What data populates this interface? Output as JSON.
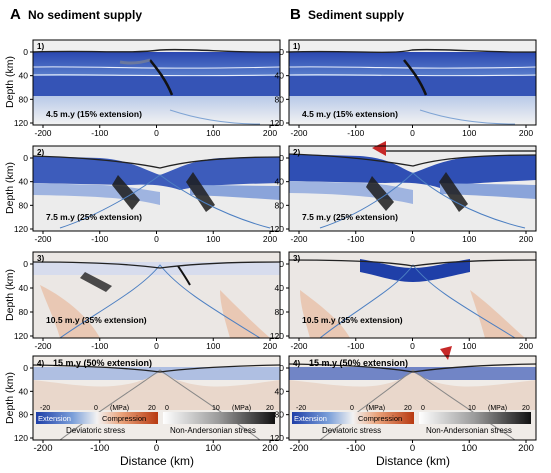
{
  "columns": [
    {
      "letter": "A",
      "title": "No sediment supply"
    },
    {
      "letter": "B",
      "title": "Sediment supply"
    }
  ],
  "panels": [
    {
      "num": "1)",
      "label": "4.5 m.y (15% extension)"
    },
    {
      "num": "2)",
      "label": "7.5 m.y (25% extension)"
    },
    {
      "num": "3)",
      "label": "10.5 m.y (35% extension)"
    },
    {
      "num": "4)",
      "label": "15 m.y (50% extension)"
    }
  ],
  "axes": {
    "ylabel": "Depth (km)",
    "xlabel": "Distance (km)",
    "yticks": [
      "0",
      "40",
      "80",
      "120"
    ],
    "xticks": [
      "-200",
      "-100",
      "0",
      "100",
      "200"
    ]
  },
  "legend": {
    "deviatoric": {
      "title": "Deviatoric stress",
      "min": "-20",
      "mid": "0",
      "unit": "(MPa)",
      "max": "20",
      "left_label": "Extension",
      "right_label": "Compression",
      "colors": [
        "#1f3fa8",
        "#7b9fd9",
        "#f2f2f2",
        "#e9a27a",
        "#b83a12"
      ]
    },
    "nonandersonian": {
      "title": "Non-Andersonian stress",
      "min": "0",
      "mid": "10",
      "unit": "(MPa)",
      "max": "20",
      "colors": [
        "#ffffff",
        "#9a9a9a",
        "#111111"
      ]
    }
  },
  "colors": {
    "extension": "#2a4bb0",
    "compression": "#c4521f",
    "neutral": "#e9e9e9",
    "arrow": "#c62828",
    "contour": "#6f9fd0"
  }
}
